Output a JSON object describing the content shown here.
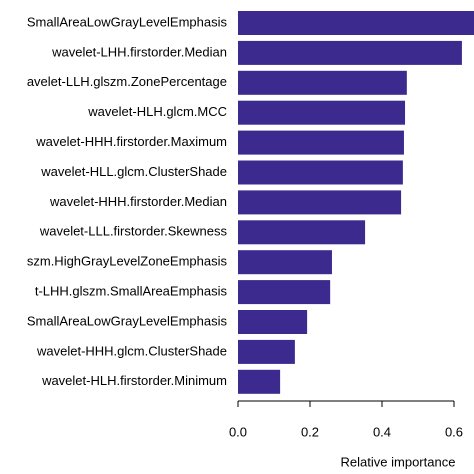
{
  "chart_data": {
    "type": "barh",
    "categories": [
      "SmallAreaLowGrayLevelEmphasis",
      "wavelet-LHH.firstorder.Median",
      "avelet-LLH.glszm.ZonePercentage",
      "wavelet-HLH.glcm.MCC",
      "wavelet-HHH.firstorder.Maximum",
      "wavelet-HLL.glcm.ClusterShade",
      "wavelet-HHH.firstorder.Median",
      "wavelet-LLL.firstorder.Skewness",
      "szm.HighGrayLevelZoneEmphasis",
      "t-LHH.glszm.SmallAreaEmphasis",
      "SmallAreaLowGrayLevelEmphasis",
      "wavelet-HHH.glcm.ClusterShade",
      "wavelet-HLH.firstorder.Minimum"
    ],
    "values": [
      0.68,
      0.622,
      0.469,
      0.464,
      0.461,
      0.458,
      0.453,
      0.353,
      0.261,
      0.256,
      0.192,
      0.158,
      0.117
    ],
    "color": "#3c2a8f",
    "xlim": [
      0,
      0.65
    ],
    "xticks": [
      {
        "value": 0,
        "label": "0.0"
      },
      0.2,
      0.4,
      0.6
    ],
    "xlabel": "Relative importance"
  }
}
